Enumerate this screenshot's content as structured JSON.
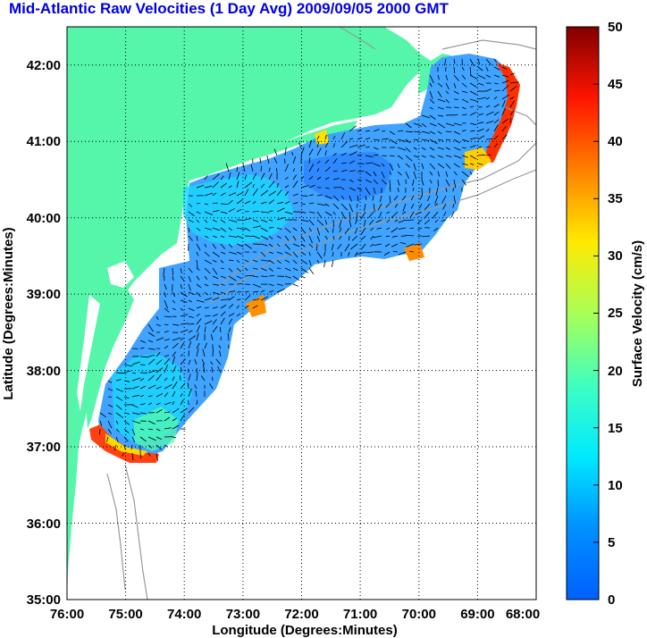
{
  "title": "Mid-Atlantic Raw Velocities (1 Day Avg) 2009/09/05 2000 GMT",
  "xlabel": "Longitude (Degrees:Minutes)",
  "ylabel": "Latitude (Degrees:Minutes)",
  "colorbar_label": "Surface Velocity (cm/s)",
  "x_ticks": [
    "76:00",
    "75:00",
    "74:00",
    "73:00",
    "72:00",
    "71:00",
    "70:00",
    "69:00",
    "68:00"
  ],
  "y_ticks": [
    "42:00",
    "41:00",
    "40:00",
    "39:00",
    "38:00",
    "37:00",
    "36:00",
    "35:00"
  ],
  "colorbar_ticks": [
    "50",
    "45",
    "40",
    "35",
    "30",
    "25",
    "20",
    "15",
    "10",
    "5",
    "0"
  ],
  "colors": {
    "land": "#55f5aa",
    "water_mask": "#ffffff",
    "gridline": "#000000",
    "bathymetry": "#9a9a9a",
    "title": "#0000e6"
  },
  "colormap": "jet",
  "chart_data": {
    "type": "heatmap",
    "title": "Mid-Atlantic Raw Velocities (1 Day Avg) 2009/09/05 2000 GMT",
    "xlabel": "Longitude (Degrees:Minutes)",
    "ylabel": "Latitude (Degrees:Minutes)",
    "xlim": [
      -76,
      -68
    ],
    "ylim": [
      35,
      42.5
    ],
    "clim": [
      0,
      50
    ],
    "units": "cm/s",
    "grid": true,
    "colorbar_placement": "right"
  }
}
